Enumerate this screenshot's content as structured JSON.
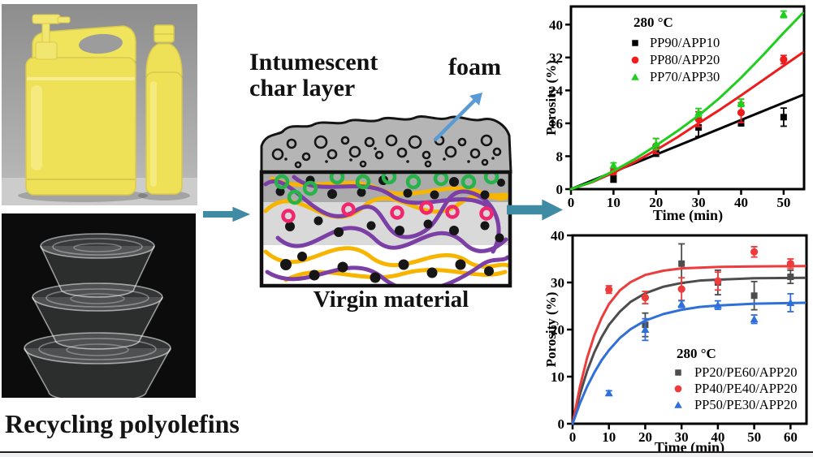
{
  "left_panel": {
    "caption": "Recycling polyolefins"
  },
  "diagram": {
    "char_label": "Intumescent char layer",
    "foam_label": "foam",
    "virgin_label": "Virgin material",
    "colors": {
      "charGray": "#b5b5b5",
      "bandDark": "#ababab",
      "bandLight": "#d9d9d9",
      "purple": "#7b3fa5",
      "yellow": "#f7b500",
      "greenRing": "#27b24a",
      "pinkRing": "#f2266e",
      "foamArrow": "#5b9bd5"
    }
  },
  "flow_arrow_color": "#3e8ba3",
  "chart_data": [
    {
      "type": "scatter",
      "panel": "top",
      "annotation": "280 °C",
      "xlabel": "Time (min)",
      "ylabel": "Porosity (%)",
      "xlim": [
        0,
        54.8
      ],
      "ylim": [
        0,
        44.4
      ],
      "xticks": [
        0,
        10,
        20,
        30,
        40,
        50
      ],
      "yticks": [
        0,
        8,
        16,
        24,
        32,
        40
      ],
      "grid": false,
      "legend_position": "top-left-inside",
      "series": [
        {
          "name": "PP90/APP10",
          "color": "#000000",
          "marker": "square",
          "x": [
            10,
            20,
            30,
            40,
            50
          ],
          "y": [
            2.5,
            9,
            15,
            16,
            17.5
          ],
          "yerr": [
            0.8,
            1.0,
            2.2,
            0.6,
            2.2
          ],
          "fit_x": [
            0,
            54.5
          ],
          "fit_y": [
            0,
            22.9
          ]
        },
        {
          "name": "PP80/APP20",
          "color": "#ee1c1c",
          "marker": "circle",
          "x": [
            10,
            20,
            30,
            40,
            50
          ],
          "y": [
            4.2,
            10.5,
            17,
            18.6,
            31.5
          ],
          "yerr": [
            0.7,
            1.8,
            1.8,
            2.4,
            1.0
          ],
          "fit_x": [
            0,
            5,
            10,
            15,
            20,
            25,
            30,
            35,
            40,
            45,
            50,
            54.5
          ],
          "fit_y": [
            0,
            1.7,
            4,
            6.6,
            9.5,
            12.6,
            16,
            19.3,
            22.8,
            26.4,
            30,
            33.2
          ]
        },
        {
          "name": "PP70/APP30",
          "color": "#1ecf1e",
          "marker": "triangle",
          "x": [
            10,
            20,
            30,
            40,
            50
          ],
          "y": [
            5.8,
            11,
            18.6,
            21,
            42.5
          ],
          "yerr": [
            0.6,
            1.3,
            1.0,
            0.9,
            0.8
          ],
          "fit_x": [
            0,
            5,
            10,
            15,
            20,
            25,
            30,
            35,
            40,
            45,
            50,
            54.5
          ],
          "fit_y": [
            0,
            1.8,
            4.4,
            7.3,
            10.6,
            14.1,
            17.9,
            22.2,
            27.1,
            32.4,
            38,
            42.8
          ]
        }
      ]
    },
    {
      "type": "scatter",
      "panel": "bottom",
      "annotation": "280 °C",
      "xlabel": "Time (min)",
      "ylabel": "Porosity (%)",
      "xlim": [
        0,
        64.4
      ],
      "ylim": [
        0,
        40
      ],
      "xticks": [
        0,
        10,
        20,
        30,
        40,
        50,
        60
      ],
      "yticks": [
        0,
        10,
        20,
        30,
        40
      ],
      "grid": false,
      "legend_position": "bottom-right-inside",
      "series": [
        {
          "name": "PP20/PE60/APP20",
          "color": "#4d4d4d",
          "marker": "square",
          "x": [
            20,
            30,
            40,
            50,
            60
          ],
          "y": [
            21,
            34,
            30,
            27.2,
            31.2
          ],
          "yerr": [
            2.5,
            4.2,
            2.6,
            3.0,
            1.4
          ],
          "fit_x": [
            0,
            2,
            4,
            6,
            8,
            10,
            13,
            16,
            20,
            25,
            30,
            35,
            40,
            50,
            64
          ],
          "fit_y": [
            0,
            6.2,
            11.2,
            15.2,
            18.4,
            21,
            23.8,
            25.9,
            27.7,
            29.1,
            29.9,
            30.4,
            30.6,
            30.9,
            31
          ]
        },
        {
          "name": "PP40/PE40/APP20",
          "color": "#ee3b3b",
          "marker": "circle",
          "x": [
            10,
            20,
            30,
            40,
            50,
            60
          ],
          "y": [
            28.5,
            26.8,
            28.6,
            30.3,
            36.5,
            34
          ],
          "yerr": [
            0.8,
            1.3,
            2.4,
            1.9,
            1.1,
            1.0
          ],
          "fit_x": [
            0,
            2,
            4,
            6,
            8,
            10,
            13,
            16,
            20,
            25,
            30,
            40,
            50,
            64
          ],
          "fit_y": [
            0,
            7.8,
            14,
            18.8,
            22.5,
            25.4,
            28.3,
            30.1,
            31.6,
            32.5,
            33,
            33.3,
            33.4,
            33.5
          ]
        },
        {
          "name": "PP50/PE30/APP20",
          "color": "#2e6fd9",
          "marker": "triangle",
          "x": [
            10,
            20,
            30,
            40,
            50,
            60
          ],
          "y": [
            6.5,
            20,
            25.4,
            25.2,
            22.2,
            25.7
          ],
          "yerr": [
            0.5,
            2.3,
            0.7,
            0.9,
            0.9,
            1.9
          ],
          "fit_x": [
            0,
            2,
            4,
            6,
            8,
            10,
            13,
            16,
            20,
            25,
            30,
            35,
            40,
            50,
            64
          ],
          "fit_y": [
            0,
            4.3,
            7.9,
            10.9,
            13.5,
            15.6,
            18.2,
            20.1,
            21.9,
            23.3,
            24.2,
            24.8,
            25.1,
            25.5,
            25.7
          ]
        }
      ]
    }
  ]
}
